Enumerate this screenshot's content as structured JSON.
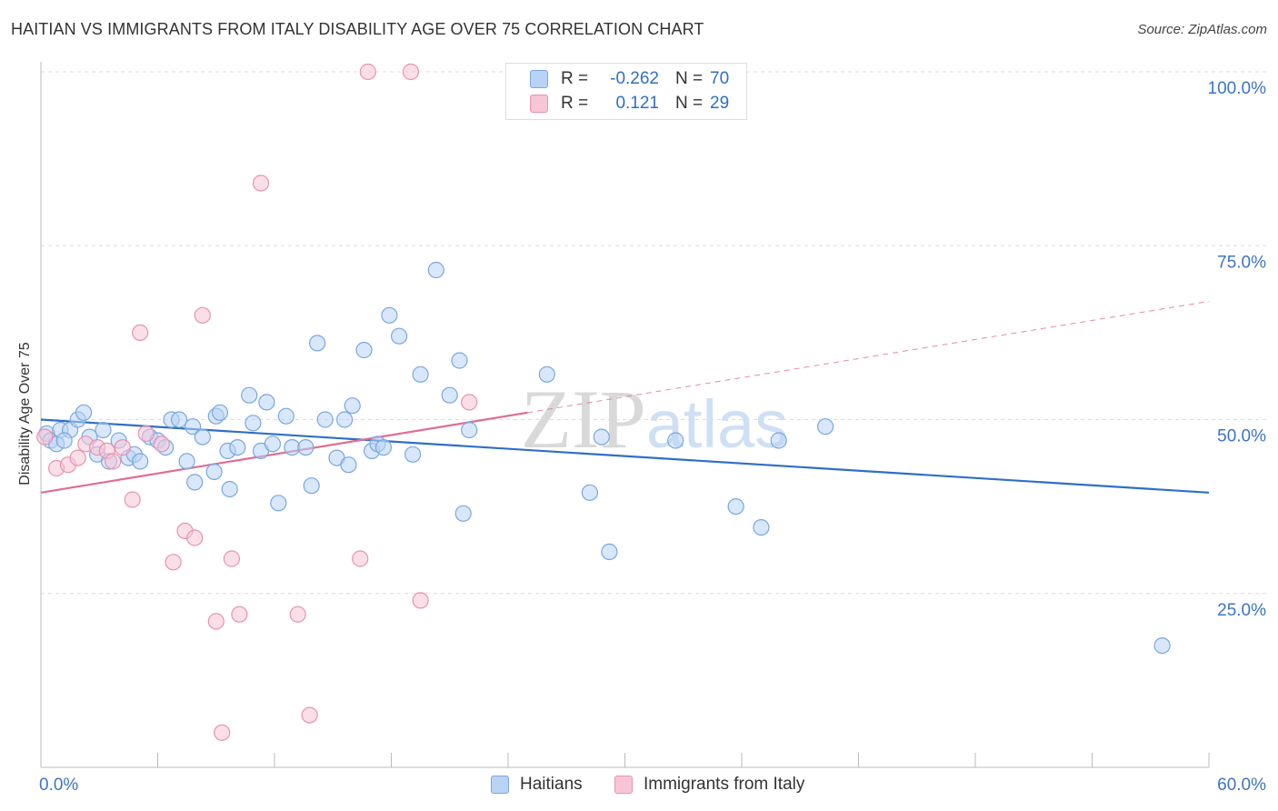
{
  "title": "HAITIAN VS IMMIGRANTS FROM ITALY DISABILITY AGE OVER 75 CORRELATION CHART",
  "source": "Source: ZipAtlas.com",
  "watermark": "ZIPatlas",
  "legend": {
    "haitians": {
      "r_label": "R =",
      "r_value": "-0.262",
      "n_label": "N =",
      "n_value": "70"
    },
    "italy": {
      "r_label": "R =",
      "r_value": "0.121",
      "n_label": "N =",
      "n_value": "29"
    }
  },
  "bottom_legend": {
    "haitians": "Haitians",
    "italy": "Immigrants from Italy"
  },
  "colors": {
    "haitians_fill": "#b8d3f5",
    "haitians_stroke": "#7aa7e0",
    "haitians_line": "#2f6fc5",
    "italy_fill": "#f8c5d6",
    "italy_stroke": "#e892ae",
    "italy_line": "#e06c93",
    "axis_label": "#3d74c4"
  },
  "chart_data": {
    "type": "scatter",
    "title": "HAITIAN VS IMMIGRANTS FROM ITALY DISABILITY AGE OVER 75 CORRELATION CHART",
    "xlabel": "",
    "ylabel": "Disability Age Over 75",
    "xlim": [
      0,
      60
    ],
    "ylim": [
      0,
      100
    ],
    "x_tick_labels": [
      "0.0%",
      "60.0%"
    ],
    "y_tick_values": [
      25,
      50,
      75,
      100
    ],
    "y_tick_labels": [
      "25.0%",
      "50.0%",
      "75.0%",
      "100.0%"
    ],
    "series": [
      {
        "name": "Haitians",
        "points": [
          [
            0.3,
            48.0
          ],
          [
            0.5,
            47.0
          ],
          [
            0.8,
            46.5
          ],
          [
            1.0,
            48.5
          ],
          [
            1.5,
            48.5
          ],
          [
            1.9,
            50.0
          ],
          [
            2.2,
            51.0
          ],
          [
            2.5,
            47.5
          ],
          [
            2.9,
            45.0
          ],
          [
            3.2,
            48.5
          ],
          [
            3.5,
            44.0
          ],
          [
            4.0,
            47.0
          ],
          [
            4.5,
            44.5
          ],
          [
            4.8,
            45.0
          ],
          [
            5.1,
            44.0
          ],
          [
            5.6,
            47.5
          ],
          [
            6.0,
            47.0
          ],
          [
            6.4,
            46.0
          ],
          [
            6.7,
            50.0
          ],
          [
            7.1,
            50.0
          ],
          [
            7.5,
            44.0
          ],
          [
            7.8,
            49.0
          ],
          [
            7.9,
            41.0
          ],
          [
            8.3,
            47.5
          ],
          [
            8.9,
            42.5
          ],
          [
            9.0,
            50.5
          ],
          [
            9.2,
            51.0
          ],
          [
            9.6,
            45.5
          ],
          [
            9.7,
            40.0
          ],
          [
            10.1,
            46.0
          ],
          [
            10.7,
            53.5
          ],
          [
            10.9,
            49.5
          ],
          [
            11.3,
            45.5
          ],
          [
            11.6,
            52.5
          ],
          [
            11.9,
            46.5
          ],
          [
            12.2,
            38.0
          ],
          [
            12.6,
            50.5
          ],
          [
            12.9,
            46.0
          ],
          [
            13.6,
            46.0
          ],
          [
            13.9,
            40.5
          ],
          [
            14.2,
            61.0
          ],
          [
            14.6,
            50.0
          ],
          [
            15.2,
            44.5
          ],
          [
            15.6,
            50.0
          ],
          [
            15.8,
            43.5
          ],
          [
            16.0,
            52.0
          ],
          [
            16.6,
            60.0
          ],
          [
            17.0,
            45.5
          ],
          [
            17.3,
            46.5
          ],
          [
            17.6,
            46.0
          ],
          [
            17.9,
            65.0
          ],
          [
            18.4,
            62.0
          ],
          [
            19.1,
            45.0
          ],
          [
            19.5,
            56.5
          ],
          [
            20.3,
            71.5
          ],
          [
            21.0,
            53.5
          ],
          [
            21.5,
            58.5
          ],
          [
            21.7,
            36.5
          ],
          [
            22.0,
            48.5
          ],
          [
            26.0,
            56.5
          ],
          [
            28.2,
            39.5
          ],
          [
            28.8,
            47.5
          ],
          [
            29.2,
            31.0
          ],
          [
            32.6,
            47.0
          ],
          [
            35.7,
            37.5
          ],
          [
            37.0,
            34.5
          ],
          [
            37.9,
            47.0
          ],
          [
            40.3,
            49.0
          ],
          [
            57.6,
            17.5
          ],
          [
            1.2,
            47.0
          ]
        ]
      },
      {
        "name": "Immigrants from Italy",
        "points": [
          [
            0.2,
            47.5
          ],
          [
            0.8,
            43.0
          ],
          [
            1.4,
            43.5
          ],
          [
            1.9,
            44.5
          ],
          [
            2.3,
            46.5
          ],
          [
            2.9,
            46.0
          ],
          [
            3.4,
            45.5
          ],
          [
            3.7,
            44.0
          ],
          [
            4.2,
            46.0
          ],
          [
            4.7,
            38.5
          ],
          [
            5.1,
            62.5
          ],
          [
            5.4,
            48.0
          ],
          [
            6.2,
            46.5
          ],
          [
            6.8,
            29.5
          ],
          [
            7.4,
            34.0
          ],
          [
            7.9,
            33.0
          ],
          [
            8.3,
            65.0
          ],
          [
            9.0,
            21.0
          ],
          [
            9.3,
            5.0
          ],
          [
            9.8,
            30.0
          ],
          [
            10.2,
            22.0
          ],
          [
            11.3,
            84.0
          ],
          [
            13.2,
            22.0
          ],
          [
            13.8,
            7.5
          ],
          [
            16.4,
            30.0
          ],
          [
            16.8,
            100.0
          ],
          [
            19.0,
            100.0
          ],
          [
            19.5,
            24.0
          ],
          [
            22.0,
            52.5
          ]
        ]
      }
    ],
    "trendlines": [
      {
        "series": "Haitians",
        "x": [
          0,
          60
        ],
        "y": [
          50.0,
          39.5
        ]
      },
      {
        "series": "Immigrants from Italy",
        "solid_x": [
          0,
          25
        ],
        "solid_y": [
          39.5,
          51.0
        ],
        "dashed_x": [
          25,
          60
        ],
        "dashed_y": [
          51.0,
          67.0
        ]
      }
    ]
  }
}
